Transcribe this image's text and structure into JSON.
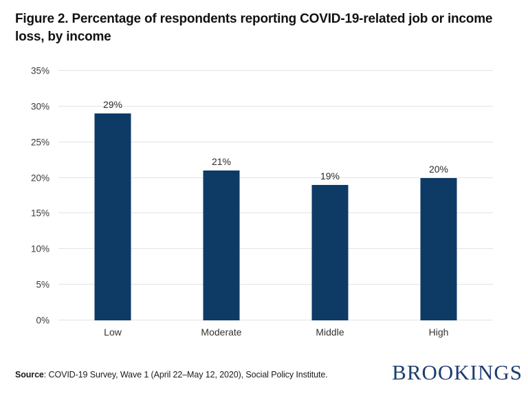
{
  "figure": {
    "title": "Figure 2. Percentage of respondents reporting COVID-19-related job or income loss, by income"
  },
  "chart_data": {
    "type": "bar",
    "categories": [
      "Low",
      "Moderate",
      "Middle",
      "High"
    ],
    "values": [
      29,
      21,
      19,
      20
    ],
    "value_labels": [
      "29%",
      "21%",
      "19%",
      "20%"
    ],
    "title": "Figure 2. Percentage of respondents reporting COVID-19-related job or income loss, by income",
    "xlabel": "",
    "ylabel": "",
    "ylim": [
      0,
      35
    ],
    "ytick_step": 5,
    "ytick_labels": [
      "0%",
      "5%",
      "10%",
      "15%",
      "20%",
      "25%",
      "30%",
      "35%"
    ],
    "grid": true,
    "legend": "none",
    "bar_color": "#0e3a66"
  },
  "footer": {
    "source_label": "Source",
    "source_rest": ": COVID-19 Survey, Wave 1 (April 22–May 12, 2020), Social Policy Institute.",
    "logo_text": "BROOKINGS"
  },
  "colors": {
    "bar": "#0e3a66",
    "gridline": "#e3e3e3",
    "title_text": "#111111",
    "axis_text": "#3a3a3a",
    "logo": "#1e3d6e"
  }
}
